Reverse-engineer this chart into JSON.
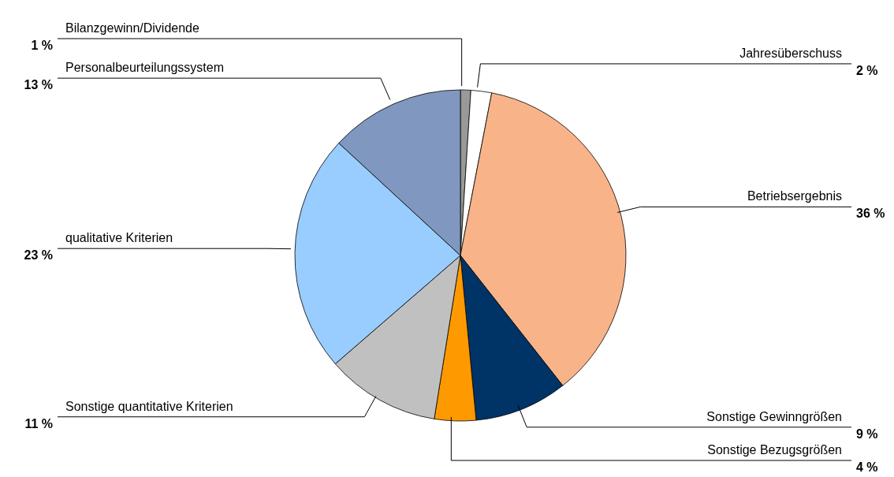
{
  "chart_data": {
    "type": "pie",
    "categories": [
      "Bilanzgewinn/Dividende",
      "Jahresüberschuss",
      "Betriebsergebnis",
      "Sonstige Gewinngrößen",
      "Sonstige Bezugsgrößen",
      "Sonstige quantitative Kriterien",
      "qualitative Kriterien",
      "Personalbeurteilungssystem"
    ],
    "values": [
      1,
      2,
      36,
      9,
      4,
      11,
      23,
      13
    ],
    "value_labels": [
      "1 %",
      "2 %",
      "36 %",
      "9 %",
      "4 %",
      "11 %",
      "23 %",
      "13 %"
    ],
    "colors": [
      "#999999",
      "#ffffff",
      "#f8b488",
      "#003366",
      "#ff9900",
      "#c0c0c0",
      "#99ccff",
      "#8098c0"
    ]
  }
}
